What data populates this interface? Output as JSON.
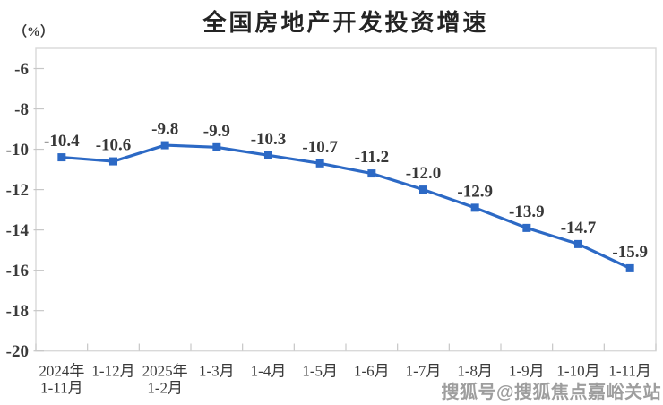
{
  "chart_data": {
    "type": "line",
    "title": "全国房地产开发投资增速",
    "unit_label": "（%）",
    "categories": [
      [
        "2024年",
        "1-11月"
      ],
      [
        "1-12月"
      ],
      [
        "2025年",
        "1-2月"
      ],
      [
        "1-3月"
      ],
      [
        "1-4月"
      ],
      [
        "1-5月"
      ],
      [
        "1-6月"
      ],
      [
        "1-7月"
      ],
      [
        "1-8月"
      ],
      [
        "1-9月"
      ],
      [
        "1-10月"
      ],
      [
        "1-11月"
      ]
    ],
    "values": [
      -10.4,
      -10.6,
      -9.8,
      -9.9,
      -10.3,
      -10.7,
      -11.2,
      -12.0,
      -12.9,
      -13.9,
      -14.7,
      -15.9
    ],
    "data_labels": [
      "-10.4",
      "-10.6",
      "-9.8",
      "-9.9",
      "-10.3",
      "-10.7",
      "-11.2",
      "-12.0",
      "-12.9",
      "-13.9",
      "-14.7",
      "-15.9"
    ],
    "y_ticks": [
      -6,
      -8,
      -10,
      -12,
      -14,
      -16,
      -18,
      -20
    ],
    "ylim": [
      -20,
      -5
    ],
    "xlabel": "",
    "ylabel": "（%）",
    "grid": false,
    "legend": false,
    "marker": "square",
    "line_color": "#2c69c5",
    "frame_color": "#d9d9d9",
    "tick_color": "#c7c7c7",
    "text_color": "#3a3a3a"
  },
  "watermark": {
    "text": "搜狐号@搜狐焦点嘉峪关站"
  }
}
